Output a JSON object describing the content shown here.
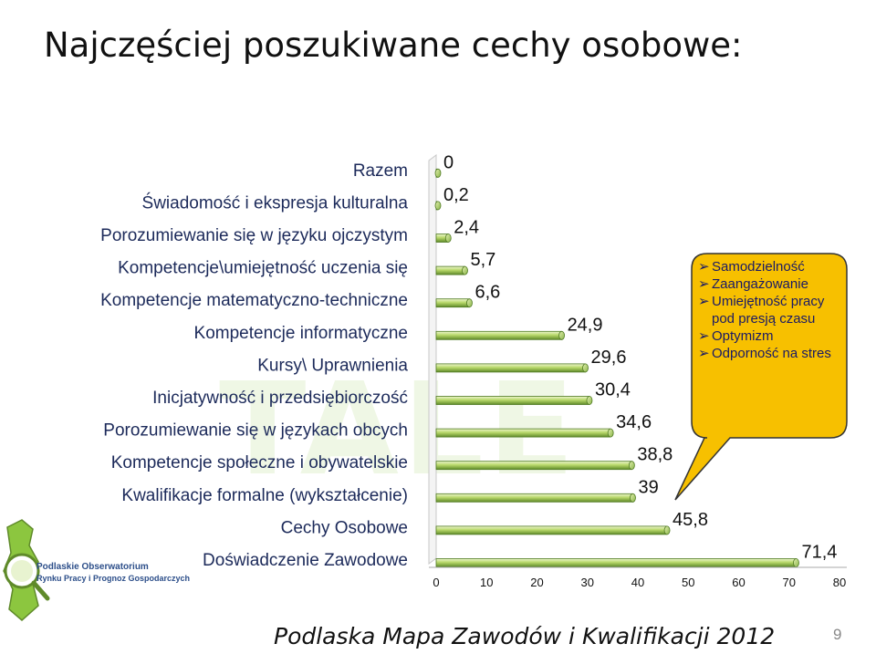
{
  "slide": {
    "title": "Najczęściej poszukiwane cechy osobowe:",
    "footer": "Podlaska Mapa Zawodów i Kwalifikacji 2012",
    "page_number": "9",
    "watermark": "TALE",
    "logo": {
      "line1": "Podlaskie Obserwatorium",
      "line2": "Rynku Pracy i Prognoz Gospodarczych"
    }
  },
  "callout": {
    "items": [
      "Samodzielność",
      "Zaangażowanie",
      "Umiejętność pracy pod presją czasu",
      "Optymizm",
      "Odporność na stres"
    ],
    "bullet": "➢",
    "fill": "#f7c000"
  },
  "colors": {
    "bar_light": "#c9e27a",
    "bar_dark": "#5f8a2a",
    "callout": "#f7c000"
  },
  "chart_data": {
    "type": "bar",
    "orientation": "horizontal",
    "categories": [
      "Razem",
      "Świadomość i ekspresja kulturalna",
      "Porozumiewanie się w języku ojczystym",
      "Kompetencje\\umiejętność uczenia się",
      "Kompetencje matematyczno-techniczne",
      "Kompetencje informatyczne",
      "Kursy\\ Uprawnienia",
      "Inicjatywność i przedsiębiorczość",
      "Porozumiewanie się w językach obcych",
      "Kompetencje społeczne i obywatelskie",
      "Kwalifikacje formalne (wykształcenie)",
      "Cechy Osobowe",
      "Doświadczenie Zawodowe"
    ],
    "values": [
      0,
      0.2,
      2.4,
      5.7,
      6.6,
      24.9,
      29.6,
      30.4,
      34.6,
      38.8,
      39,
      45.8,
      71.4
    ],
    "data_labels": [
      "0",
      "0,2",
      "2,4",
      "5,7",
      "6,6",
      "24,9",
      "29,6",
      "30,4",
      "34,6",
      "38,8",
      "39",
      "45,8",
      "71,4"
    ],
    "xlim": [
      0,
      80
    ],
    "xticks": [
      0,
      10,
      20,
      30,
      40,
      50,
      60,
      70,
      80
    ],
    "style": "3d-cylinder",
    "grid": false,
    "legend": "none",
    "title": "",
    "xlabel": "",
    "ylabel": ""
  }
}
